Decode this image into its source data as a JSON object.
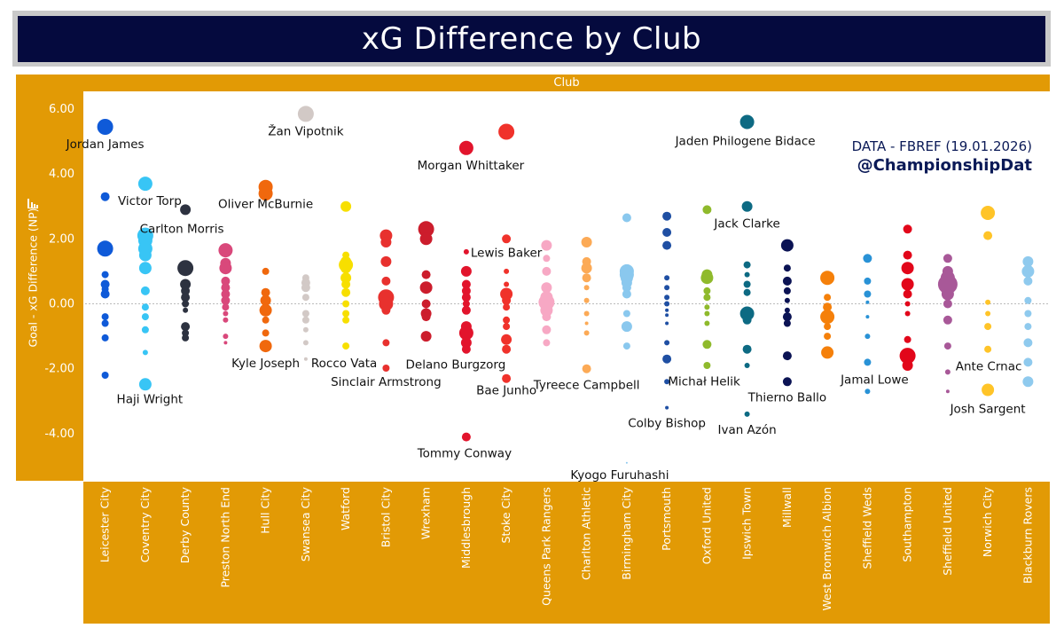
{
  "title": "xG Difference by Club",
  "column_header": "Club",
  "y_axis_label": "Goal - xG Difference (NP)",
  "source_line": "DATA - FBREF (19.01.2026)",
  "handle": "@ChampionshipDat",
  "colors": {
    "title_bg": "#050a3e",
    "band": "#e29a05",
    "source_text": "#0b1a57",
    "zero_line": "#bbbbbb"
  },
  "chart_data": {
    "type": "scatter",
    "title": "xG Difference by Club",
    "xlabel": "Club",
    "ylabel": "Goal - xG Difference (NP)",
    "ylim": [
      -5.0,
      6.4
    ],
    "yticks": [
      "6.00",
      "4.00",
      "2.00",
      "0.00",
      "-2.00",
      "-4.00"
    ],
    "grid": false,
    "categories": [
      "Leicester City",
      "Coventry City",
      "Derby County",
      "Preston North End",
      "Hull City",
      "Swansea City",
      "Watford",
      "Bristol City",
      "Wrexham",
      "Middlesbrough",
      "Stoke City",
      "Queens Park Rangers",
      "Charlton Athletic",
      "Birmingham City",
      "Portsmouth",
      "Oxford United",
      "Ipswich Town",
      "Millwall",
      "West Bromwich Albion",
      "Sheffield Weds",
      "Southampton",
      "Sheffield United",
      "Norwich City",
      "Blackburn Rovers"
    ],
    "series": [
      {
        "club": "Leicester City",
        "color": "#0f5ad8",
        "values": [
          5.45,
          3.3,
          1.7,
          0.9,
          0.6,
          0.45,
          0.3,
          -0.4,
          -0.6,
          -1.05,
          -2.2
        ],
        "sizes": [
          9,
          5,
          9,
          4,
          5,
          4,
          5,
          4,
          4,
          4,
          4
        ]
      },
      {
        "club": "Coventry City",
        "color": "#38c5f5",
        "values": [
          3.7,
          2.1,
          1.95,
          1.7,
          1.5,
          1.1,
          0.4,
          -0.1,
          -0.4,
          -0.8,
          -1.5,
          -2.48
        ],
        "sizes": [
          8,
          9,
          8,
          8,
          7,
          7,
          5,
          4,
          4,
          4,
          3,
          7
        ]
      },
      {
        "club": "Derby County",
        "color": "#2d3240",
        "values": [
          2.9,
          1.1,
          0.6,
          0.4,
          0.2,
          0.0,
          -0.2,
          -0.7,
          -0.9,
          -1.05
        ],
        "sizes": [
          6,
          9,
          6,
          5,
          5,
          4,
          3,
          5,
          4,
          4
        ]
      },
      {
        "club": "Preston North End",
        "color": "#d9487b",
        "values": [
          1.65,
          1.25,
          1.1,
          0.7,
          0.5,
          0.3,
          0.1,
          -0.1,
          -0.3,
          -0.5,
          -1.0,
          -1.2
        ],
        "sizes": [
          8,
          6,
          7,
          5,
          5,
          5,
          5,
          4,
          3,
          3,
          3,
          2
        ]
      },
      {
        "club": "Hull City",
        "color": "#f0680d",
        "values": [
          3.6,
          3.4,
          1.0,
          0.35,
          0.1,
          -0.2,
          -0.5,
          -0.9,
          -1.3
        ],
        "sizes": [
          8,
          8,
          4,
          5,
          6,
          7,
          4,
          4,
          7
        ]
      },
      {
        "club": "Swansea City",
        "color": "#d2c9c6",
        "values": [
          5.85,
          0.8,
          0.65,
          0.5,
          0.2,
          -0.3,
          -0.5,
          -0.8,
          -1.2,
          -1.7
        ],
        "sizes": [
          9,
          4,
          5,
          5,
          4,
          4,
          4,
          3,
          3,
          2
        ]
      },
      {
        "club": "Watford",
        "color": "#f7df00",
        "values": [
          3.0,
          1.5,
          1.3,
          1.2,
          1.1,
          0.8,
          0.6,
          0.35,
          0.0,
          -0.3,
          -0.5,
          -1.3
        ],
        "sizes": [
          6,
          4,
          6,
          8,
          6,
          6,
          5,
          5,
          4,
          4,
          4,
          4
        ]
      },
      {
        "club": "Bristol City",
        "color": "#e8312e",
        "values": [
          2.1,
          1.9,
          1.3,
          0.7,
          0.2,
          0.0,
          -0.2,
          -1.2,
          -1.98
        ],
        "sizes": [
          7,
          6,
          6,
          5,
          9,
          8,
          5,
          4,
          4
        ]
      },
      {
        "club": "Wrexham",
        "color": "#cc1d2c",
        "values": [
          2.3,
          2.0,
          0.9,
          0.5,
          0.0,
          -0.3,
          -0.4,
          -1.0
        ],
        "sizes": [
          9,
          7,
          5,
          7,
          5,
          6,
          5,
          6
        ]
      },
      {
        "club": "Middlesbrough",
        "color": "#e2142c",
        "values": [
          4.8,
          1.6,
          1.0,
          0.6,
          0.4,
          0.2,
          0.0,
          -0.2,
          -0.7,
          -0.9,
          -1.2,
          -1.4,
          -4.1
        ],
        "sizes": [
          8,
          3,
          6,
          5,
          5,
          5,
          4,
          5,
          6,
          8,
          6,
          5,
          5
        ]
      },
      {
        "club": "Stoke City",
        "color": "#f0322b",
        "values": [
          5.3,
          2.0,
          1.0,
          0.6,
          0.3,
          0.1,
          -0.1,
          -0.5,
          -0.7,
          -1.1,
          -1.4,
          -2.3
        ],
        "sizes": [
          9,
          5,
          3,
          3,
          7,
          5,
          4,
          4,
          4,
          6,
          5,
          5
        ]
      },
      {
        "club": "Queens Park Rangers",
        "color": "#f7a8c4",
        "values": [
          1.8,
          1.4,
          1.0,
          0.5,
          0.2,
          0.05,
          -0.2,
          -0.4,
          -0.8,
          -1.2
        ],
        "sizes": [
          6,
          4,
          5,
          6,
          7,
          9,
          7,
          5,
          5,
          4
        ]
      },
      {
        "club": "Charlton Athletic",
        "color": "#fcaa56",
        "values": [
          1.9,
          1.3,
          1.1,
          0.8,
          0.5,
          0.1,
          -0.3,
          -0.6,
          -0.9,
          -2.0
        ],
        "sizes": [
          6,
          5,
          6,
          5,
          3,
          3,
          3,
          2,
          3,
          5
        ]
      },
      {
        "club": "Birmingham City",
        "color": "#8ac8ee",
        "values": [
          2.65,
          1.0,
          0.9,
          0.8,
          0.65,
          0.5,
          0.3,
          -0.3,
          -0.7,
          -1.3,
          -4.9
        ],
        "sizes": [
          5,
          8,
          8,
          7,
          6,
          5,
          5,
          4,
          6,
          4,
          1
        ]
      },
      {
        "club": "Portsmouth",
        "color": "#1f4fa3",
        "values": [
          2.7,
          2.2,
          1.8,
          0.8,
          0.5,
          0.2,
          0.0,
          -0.2,
          -0.35,
          -0.6,
          -1.2,
          -1.7,
          -2.4,
          -3.2
        ],
        "sizes": [
          5,
          5,
          5,
          3,
          3,
          3,
          3,
          2,
          2,
          2,
          3,
          5,
          3,
          2
        ]
      },
      {
        "club": "Oxford United",
        "color": "#8fba2c",
        "values": [
          2.9,
          0.9,
          0.8,
          0.4,
          0.2,
          -0.1,
          -0.3,
          -0.6,
          -1.25,
          -1.9
        ],
        "sizes": [
          5,
          6,
          7,
          4,
          4,
          3,
          3,
          3,
          5,
          4
        ]
      },
      {
        "club": "Ipswich Town",
        "color": "#0d6a83",
        "values": [
          5.6,
          3.0,
          1.2,
          0.9,
          0.6,
          0.35,
          -0.3,
          -0.5,
          -1.4,
          -1.9,
          -3.4
        ],
        "sizes": [
          8,
          6,
          4,
          3,
          4,
          4,
          8,
          5,
          5,
          3,
          3
        ]
      },
      {
        "club": "Millwall",
        "color": "#0b1354",
        "values": [
          1.8,
          1.1,
          0.7,
          0.4,
          0.1,
          -0.2,
          -0.4,
          -0.6,
          -1.6,
          -2.4
        ],
        "sizes": [
          7,
          4,
          5,
          4,
          3,
          3,
          5,
          4,
          5,
          5
        ]
      },
      {
        "club": "West Bromwich Albion",
        "color": "#f5800a",
        "values": [
          0.8,
          0.2,
          -0.1,
          -0.4,
          -0.7,
          -1.0,
          -1.5
        ],
        "sizes": [
          8,
          4,
          5,
          8,
          4,
          4,
          7
        ]
      },
      {
        "club": "Sheffield Weds",
        "color": "#2992d6",
        "values": [
          1.4,
          0.7,
          0.3,
          0.05,
          -0.4,
          -1.0,
          -1.8,
          -2.7
        ],
        "sizes": [
          5,
          4,
          4,
          2,
          2,
          3,
          4,
          3
        ]
      },
      {
        "club": "Southampton",
        "color": "#e2061a",
        "values": [
          2.3,
          1.5,
          1.1,
          0.6,
          0.3,
          0.0,
          -0.3,
          -1.1,
          -1.6,
          -1.9
        ],
        "sizes": [
          5,
          5,
          7,
          7,
          5,
          3,
          3,
          4,
          9,
          6
        ]
      },
      {
        "club": "Sheffield United",
        "color": "#a85898",
        "values": [
          1.4,
          1.0,
          0.8,
          0.6,
          0.3,
          0.0,
          -0.5,
          -1.3,
          -2.1,
          -2.7
        ],
        "sizes": [
          5,
          6,
          8,
          11,
          7,
          5,
          5,
          4,
          3,
          2
        ]
      },
      {
        "club": "Norwich City",
        "color": "#ffc428",
        "values": [
          2.8,
          2.1,
          0.05,
          -0.3,
          -0.7,
          -1.4,
          -2.65
        ],
        "sizes": [
          8,
          5,
          3,
          3,
          4,
          4,
          7
        ]
      },
      {
        "club": "Blackburn Rovers",
        "color": "#8fcaee",
        "values": [
          1.3,
          1.0,
          0.7,
          0.1,
          -0.3,
          -0.7,
          -1.2,
          -1.8,
          -2.4
        ],
        "sizes": [
          6,
          7,
          5,
          4,
          4,
          4,
          5,
          5,
          6
        ]
      }
    ],
    "annotations": [
      {
        "text": "Jordan James",
        "club": "Leicester City",
        "value": 5.45
      },
      {
        "text": "Victor Torp",
        "club": "Coventry City",
        "value": 3.7
      },
      {
        "text": "Carlton Morris",
        "club": "Derby County",
        "value": 2.9
      },
      {
        "text": "Haji Wright",
        "club": "Coventry City",
        "value": -2.48
      },
      {
        "text": "Oliver McBurnie",
        "club": "Hull City",
        "value": 3.6
      },
      {
        "text": "Žan Vipotnik",
        "club": "Swansea City",
        "value": 5.85
      },
      {
        "text": "Kyle Joseph",
        "club": "Hull City",
        "value": -1.3
      },
      {
        "text": "Rocco Vata",
        "club": "Watford",
        "value": -1.3
      },
      {
        "text": "Sinclair Armstrong",
        "club": "Bristol City",
        "value": -1.98
      },
      {
        "text": "Morgan Whittaker",
        "club": "Middlesbrough",
        "value": 4.8
      },
      {
        "text": "Lewis Baker",
        "club": "Stoke City",
        "value": 2.0
      },
      {
        "text": "Delano Burgzorg",
        "club": "Middlesbrough",
        "value": -1.4
      },
      {
        "text": "Bae Junho",
        "club": "Stoke City",
        "value": -2.3
      },
      {
        "text": "Tommy Conway",
        "club": "Middlesbrough",
        "value": -4.1
      },
      {
        "text": "Tyreece Campbell",
        "club": "Charlton Athletic",
        "value": -2.0
      },
      {
        "text": "Kyogo Furuhashi",
        "club": "Birmingham City",
        "value": -4.9
      },
      {
        "text": "Colby Bishop",
        "club": "Portsmouth",
        "value": -3.2
      },
      {
        "text": "Michał Helik",
        "club": "Portsmouth",
        "value": -2.4
      },
      {
        "text": "Jaden Philogene Bidace",
        "club": "Ipswich Town",
        "value": 5.6
      },
      {
        "text": "Jack Clarke",
        "club": "Ipswich Town",
        "value": 3.0
      },
      {
        "text": "Ivan Azón",
        "club": "Ipswich Town",
        "value": -3.4
      },
      {
        "text": "Thierno Ballo",
        "club": "Millwall",
        "value": -2.4
      },
      {
        "text": "Jamal Lowe",
        "club": "Sheffield Weds",
        "value": -1.8
      },
      {
        "text": "Ante Crnac",
        "club": "Norwich City",
        "value": -1.4
      },
      {
        "text": "Josh Sargent",
        "club": "Norwich City",
        "value": -2.65
      }
    ]
  }
}
